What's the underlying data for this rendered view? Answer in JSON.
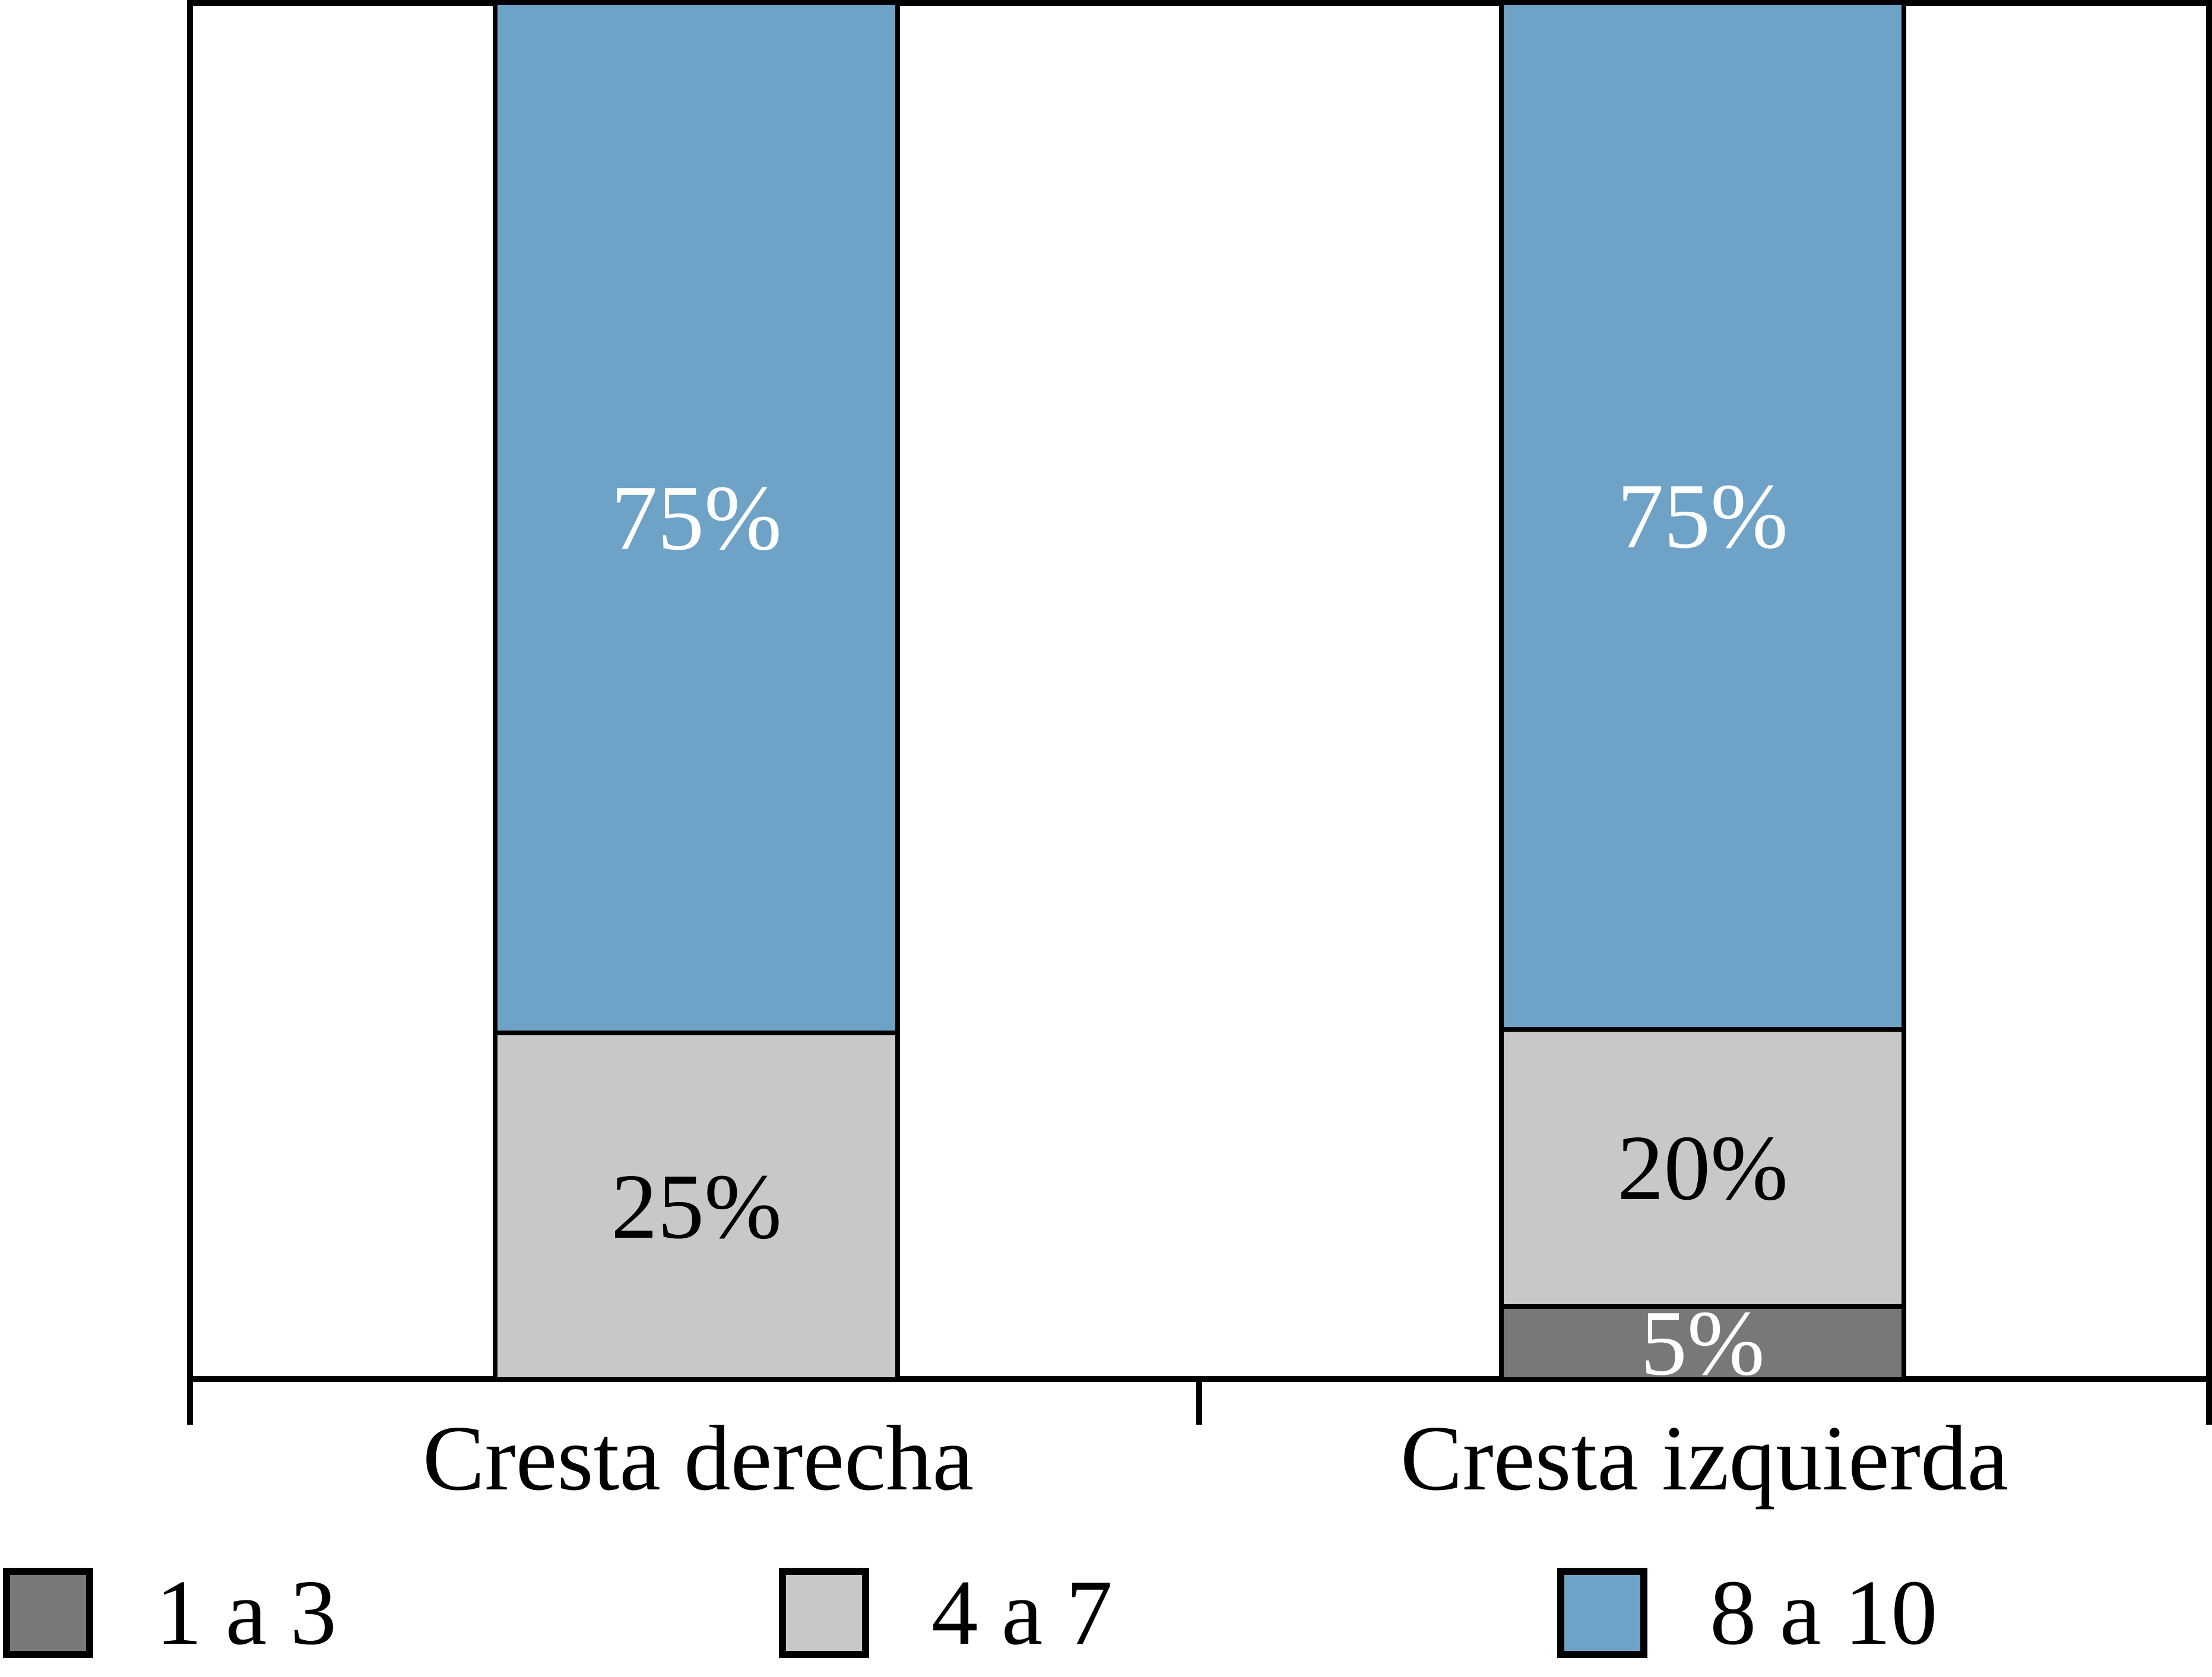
{
  "chart_data": {
    "type": "bar",
    "stacked": true,
    "orientation": "vertical",
    "categories": [
      "Cresta derecha",
      "Cresta izquierda"
    ],
    "series": [
      {
        "name": "1 a 3",
        "color": "#787878",
        "label_color": "#ffffff",
        "values": [
          0,
          5
        ]
      },
      {
        "name": "4 a 7",
        "color": "#c8c8c8",
        "label_color": "#000000",
        "values": [
          25,
          20
        ]
      },
      {
        "name": "8 a 10",
        "color": "#6fa2c7",
        "label_color": "#ffffff",
        "values": [
          75,
          75
        ]
      }
    ],
    "value_suffix": "%",
    "bar_value_labels": [
      "75%",
      "25%",
      "75%",
      "20%",
      "5%"
    ],
    "ylim": [
      0,
      100
    ],
    "grid": false,
    "axis_color": "#000000",
    "legend_position": "bottom"
  }
}
